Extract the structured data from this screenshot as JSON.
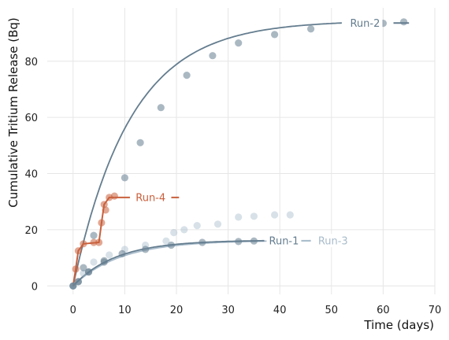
{
  "chart_data": {
    "type": "scatter",
    "title": "",
    "xlabel": "Time (days)",
    "ylabel": "Cumulative Tritium Release (Bq)",
    "xlim": [
      -5,
      70
    ],
    "ylim": [
      -3,
      99
    ],
    "xticks": [
      0,
      10,
      20,
      30,
      40,
      50,
      60,
      70
    ],
    "yticks": [
      0,
      20,
      40,
      60,
      80
    ],
    "grid": true,
    "legend": "inline labels at line ends",
    "series": [
      {
        "name": "Run-2",
        "color": "#647d8f",
        "points": [
          [
            0,
            0
          ],
          [
            1,
            1.5
          ],
          [
            3,
            5
          ],
          [
            6,
            9
          ],
          [
            10,
            38.5
          ],
          [
            13,
            51
          ],
          [
            17,
            63.5
          ],
          [
            22,
            75
          ],
          [
            27,
            82
          ],
          [
            32,
            86.5
          ],
          [
            39,
            89.5
          ],
          [
            46,
            91.5
          ],
          [
            60,
            93.5
          ],
          [
            64,
            94
          ]
        ],
        "fit": {
          "model": "exponential",
          "ymax": 94.5,
          "k": 0.09,
          "x_end": 52
        },
        "tail": {
          "x_start": 62,
          "x_end": 65
        },
        "label": "Run-2",
        "label_at": [
          56.5,
          93.5
        ]
      },
      {
        "name": "Run-1",
        "color": "#647d8f",
        "points": [
          [
            0,
            0
          ],
          [
            1,
            1.5
          ],
          [
            2,
            6.5
          ],
          [
            3,
            5
          ],
          [
            4,
            18
          ],
          [
            6,
            8.5
          ],
          [
            9.5,
            11.5
          ],
          [
            14,
            13
          ],
          [
            19,
            14.5
          ],
          [
            25,
            15.5
          ],
          [
            32,
            15.8
          ],
          [
            35,
            16
          ]
        ],
        "fit": {
          "model": "exponential",
          "ymax": 16.3,
          "k": 0.12,
          "x_end": 37
        },
        "tail": {
          "x_start": 36.5,
          "x_end": 36.5
        },
        "label": "Run-1",
        "label_at": [
          40.8,
          16
        ]
      },
      {
        "name": "Run-3",
        "color": "#a9bccb",
        "points": [
          [
            0,
            0
          ],
          [
            2,
            4.5
          ],
          [
            4,
            8.5
          ],
          [
            7,
            11
          ],
          [
            10,
            13
          ],
          [
            14,
            14.5
          ],
          [
            18,
            16
          ],
          [
            19.5,
            19
          ],
          [
            21.5,
            20
          ],
          [
            24,
            21.5
          ],
          [
            28,
            22
          ],
          [
            32,
            24.5
          ],
          [
            35,
            24.8
          ],
          [
            39,
            25.3
          ],
          [
            42,
            25.3
          ]
        ],
        "fit": {
          "model": "exponential",
          "ymax": 16.2,
          "k": 0.11,
          "x_end": 46
        },
        "tail": {
          "x_start": 42.5,
          "x_end": 46
        },
        "label": "Run-3",
        "label_at": [
          50.3,
          16
        ]
      },
      {
        "name": "Run-4",
        "color": "#c9603d",
        "points": [
          [
            0.5,
            6
          ],
          [
            1,
            12.5
          ],
          [
            2,
            15
          ],
          [
            4,
            15.5
          ],
          [
            5,
            15.5
          ],
          [
            5.5,
            22.5
          ],
          [
            6,
            29
          ],
          [
            6.3,
            27
          ],
          [
            7,
            31.5
          ],
          [
            8,
            32
          ]
        ],
        "step_line": [
          [
            0,
            0
          ],
          [
            0.5,
            6
          ],
          [
            1,
            12.5
          ],
          [
            2,
            15
          ],
          [
            5,
            15.5
          ],
          [
            5.5,
            22.5
          ],
          [
            6,
            29
          ],
          [
            7,
            31.5
          ],
          [
            8,
            31.5
          ]
        ],
        "tail": {
          "x_start": 8,
          "x_end": 11
        },
        "tail2": {
          "x_start": 19,
          "x_end": 20.5
        },
        "label": "Run-4",
        "label_at": [
          15,
          31.5
        ]
      }
    ]
  }
}
